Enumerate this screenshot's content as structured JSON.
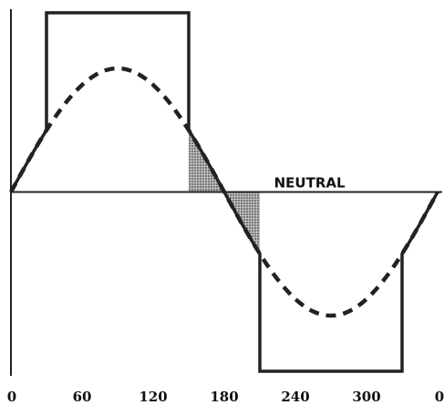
{
  "chart_data": {
    "type": "line",
    "xlim": [
      0,
      360
    ],
    "ylim": [
      -1.45,
      1.45
    ],
    "x_ticks": [
      "0",
      "60",
      "120",
      "180",
      "240",
      "300",
      "0"
    ],
    "x_tick_values": [
      0,
      60,
      120,
      180,
      240,
      300,
      360
    ],
    "annotation": "NEUTRAL",
    "series": [
      {
        "style": "dashed",
        "shape": "sine",
        "amplitude": 1.0,
        "points": [
          [
            0,
            0
          ],
          [
            30,
            0.5
          ],
          [
            60,
            0.866
          ],
          [
            90,
            1
          ],
          [
            120,
            0.866
          ],
          [
            150,
            0.5
          ],
          [
            180,
            0
          ],
          [
            210,
            -0.5
          ],
          [
            240,
            -0.866
          ],
          [
            270,
            -1
          ],
          [
            300,
            -0.866
          ],
          [
            330,
            -0.5
          ],
          [
            360,
            0
          ]
        ]
      },
      {
        "style": "solid",
        "shape": "modified square wave",
        "points": [
          [
            0,
            0
          ],
          [
            30,
            0.5
          ],
          [
            30,
            1.45
          ],
          [
            150,
            1.45
          ],
          [
            150,
            0.5
          ],
          [
            210,
            -0.5
          ],
          [
            210,
            -1.45
          ],
          [
            330,
            -1.45
          ],
          [
            330,
            -0.5
          ],
          [
            360,
            0
          ]
        ]
      }
    ],
    "shaded_regions": [
      [
        150,
        180
      ],
      [
        180,
        210
      ]
    ],
    "colors": {
      "line": "#222222",
      "shade": "#7a7a7a",
      "axis": "#222222"
    }
  }
}
